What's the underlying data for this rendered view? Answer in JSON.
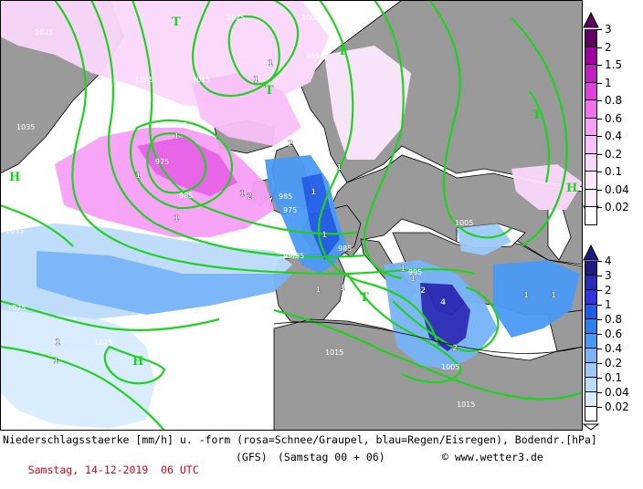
{
  "map": {
    "high_label": "H",
    "low_label": "T",
    "isobar_labels": [
      {
        "text": "1025"
      },
      {
        "text": "1025"
      },
      {
        "text": "1005"
      },
      {
        "text": "1015"
      },
      {
        "text": "995"
      },
      {
        "text": "985"
      },
      {
        "text": "975"
      },
      {
        "text": "985"
      },
      {
        "text": "1035"
      },
      {
        "text": "1005"
      },
      {
        "text": "985"
      },
      {
        "text": "975"
      },
      {
        "text": "995"
      },
      {
        "text": "1005"
      },
      {
        "text": "1015"
      },
      {
        "text": "1025"
      },
      {
        "text": "1015"
      },
      {
        "text": "1005"
      },
      {
        "text": "1015"
      },
      {
        "text": "1025"
      },
      {
        "text": "1035"
      },
      {
        "text": "1015"
      },
      {
        "text": "995"
      },
      {
        "text": "985"
      },
      {
        "text": "995"
      }
    ],
    "precip_labels": [
      "1",
      "1",
      "1",
      "2",
      "1",
      "1",
      "1",
      "1",
      "1",
      "2",
      "1",
      "1",
      "1",
      "1",
      "1",
      "2",
      "4",
      "2",
      "1",
      "1",
      "1",
      "1"
    ]
  },
  "legend": {
    "snow_scale": {
      "colors": [
        "#600060",
        "#a000a0",
        "#c020c0",
        "#e040e0",
        "#f070f0",
        "#f7a0f7",
        "#f9c0f9",
        "#fbd7fb",
        "#fde8fd",
        "#feefff",
        "#ffffff"
      ],
      "labels": [
        "3",
        "2",
        "1.5",
        "1",
        "0.8",
        "0.6",
        "0.4",
        "0.2",
        "0.1",
        "0.04",
        "0.02"
      ]
    },
    "rain_scale": {
      "colors": [
        "#1b1b82",
        "#2a2ab8",
        "#3232e0",
        "#1e5ce8",
        "#2a7ef0",
        "#4a9af5",
        "#78b4f7",
        "#9ccaf9",
        "#bcdcfb",
        "#d8ecfd",
        "#ffffff"
      ],
      "labels": [
        "4",
        "3",
        "2",
        "1",
        "0.8",
        "0.6",
        "0.4",
        "0.2",
        "0.1",
        "0.04",
        "0.02"
      ]
    }
  },
  "footer": {
    "line1": "Niederschlagsstaerke [mm/h] u. -form (rosa=Schnee/Graupel, blau=Regen/Eisregen), Bodendr.[hPa]",
    "date": "Samstag, 14-12-2019  06 UTC",
    "model": "(GFS)",
    "run": "(Samstag 00 + 06)",
    "credit": "© www.wetter3.de"
  },
  "colors": {
    "sea": "#ffffff",
    "land": "#9a9a9a",
    "isobar": "#1fd21f",
    "coast": "#000000",
    "date_red": "#e0001a"
  }
}
